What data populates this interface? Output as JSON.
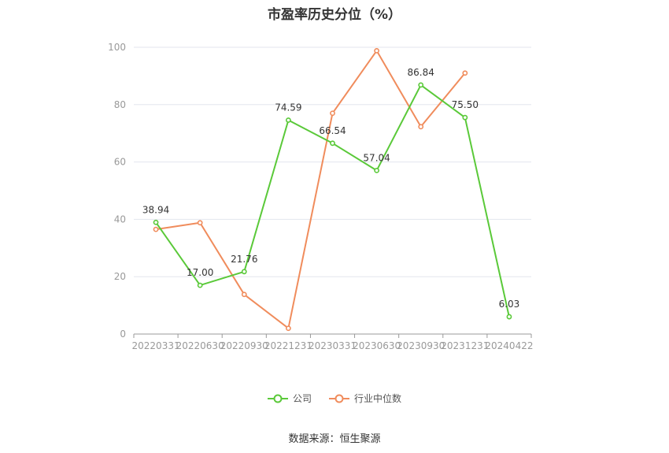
{
  "chart_data": {
    "type": "line",
    "title": "市盈率历史分位（%）",
    "categories": [
      "20220331",
      "20220630",
      "20220930",
      "20221231",
      "20230331",
      "20230630",
      "20230930",
      "20231231",
      "20240422"
    ],
    "ylim": [
      0,
      100
    ],
    "yticks": [
      0,
      20,
      40,
      60,
      80,
      100
    ],
    "grid": true,
    "legend_position": "bottom",
    "series": [
      {
        "name": "公司",
        "color": "#5ac939",
        "values": [
          38.94,
          17.0,
          21.76,
          74.59,
          66.54,
          57.04,
          86.84,
          75.5,
          6.03
        ],
        "labels": [
          "38.94",
          "17.00",
          "21.76",
          "74.59",
          "66.54",
          "57.04",
          "86.84",
          "75.50",
          "6.03"
        ]
      },
      {
        "name": "行业中位数",
        "color": "#f08c5c",
        "values": [
          36.5,
          38.8,
          13.8,
          2.0,
          77.0,
          98.8,
          72.3,
          91.0,
          null
        ],
        "labels": null
      }
    ]
  },
  "source_text": "数据来源：恒生聚源"
}
